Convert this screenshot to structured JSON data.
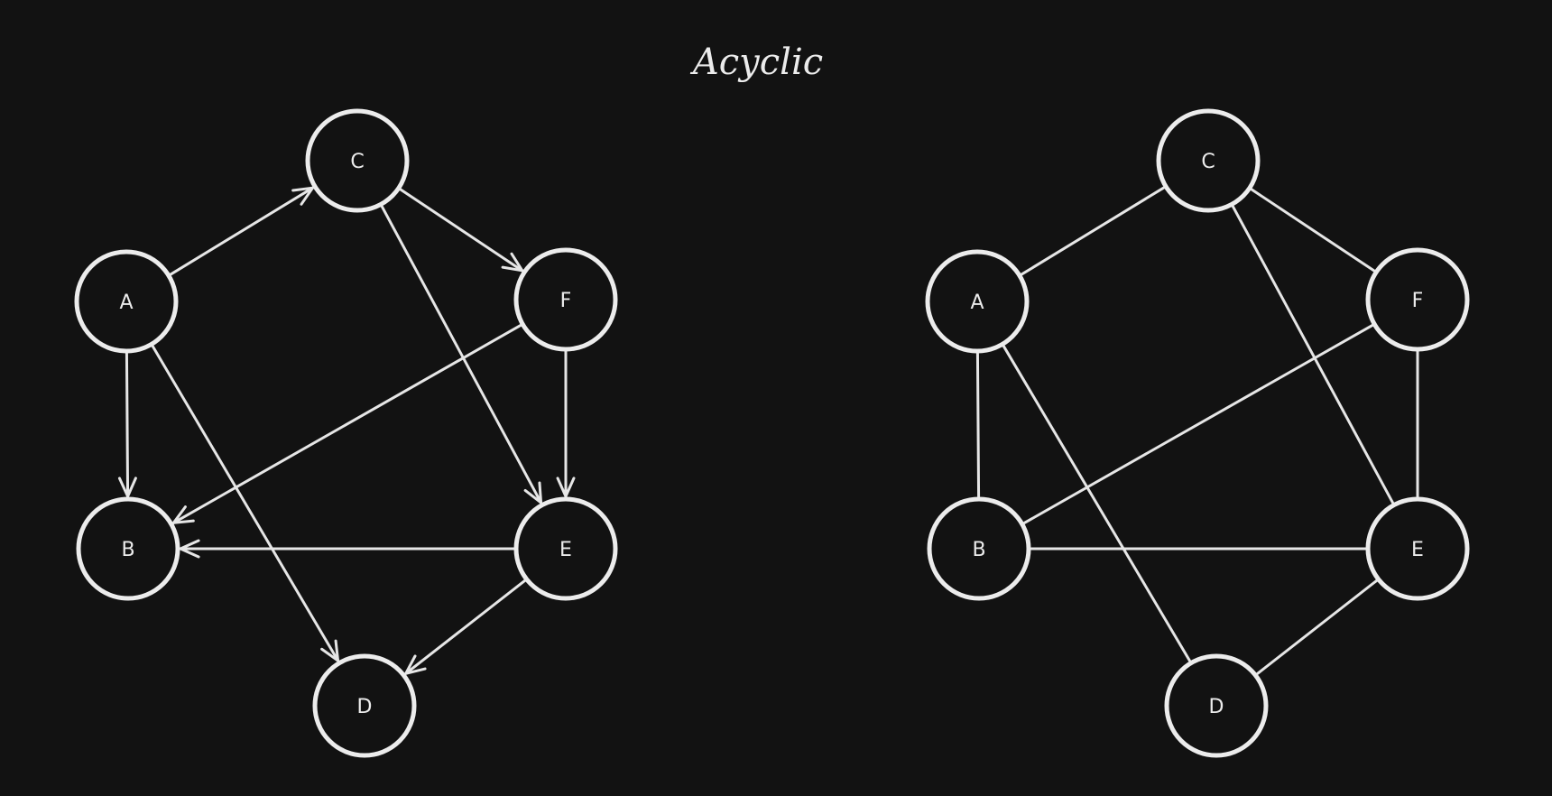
{
  "title": "Acyclic",
  "colors": {
    "background": "#121212",
    "stroke": "#ececec"
  },
  "graphs": [
    {
      "id": "directed",
      "directed": true,
      "nodes": [
        {
          "id": "C",
          "label": "C"
        },
        {
          "id": "A",
          "label": "A"
        },
        {
          "id": "F",
          "label": "F"
        },
        {
          "id": "B",
          "label": "B"
        },
        {
          "id": "E",
          "label": "E"
        },
        {
          "id": "D",
          "label": "D"
        }
      ],
      "edges": [
        {
          "from": "A",
          "to": "C"
        },
        {
          "from": "A",
          "to": "B"
        },
        {
          "from": "A",
          "to": "D"
        },
        {
          "from": "C",
          "to": "F"
        },
        {
          "from": "C",
          "to": "E"
        },
        {
          "from": "F",
          "to": "B"
        },
        {
          "from": "F",
          "to": "E"
        },
        {
          "from": "E",
          "to": "B"
        },
        {
          "from": "E",
          "to": "D"
        }
      ]
    },
    {
      "id": "undirected",
      "directed": false,
      "nodes": [
        {
          "id": "C",
          "label": "C"
        },
        {
          "id": "A",
          "label": "A"
        },
        {
          "id": "F",
          "label": "F"
        },
        {
          "id": "B",
          "label": "B"
        },
        {
          "id": "E",
          "label": "E"
        },
        {
          "id": "D",
          "label": "D"
        }
      ],
      "edges": [
        {
          "from": "A",
          "to": "C"
        },
        {
          "from": "A",
          "to": "B"
        },
        {
          "from": "A",
          "to": "D"
        },
        {
          "from": "C",
          "to": "F"
        },
        {
          "from": "C",
          "to": "E"
        },
        {
          "from": "F",
          "to": "B"
        },
        {
          "from": "F",
          "to": "E"
        },
        {
          "from": "E",
          "to": "B"
        },
        {
          "from": "E",
          "to": "D"
        }
      ]
    }
  ]
}
